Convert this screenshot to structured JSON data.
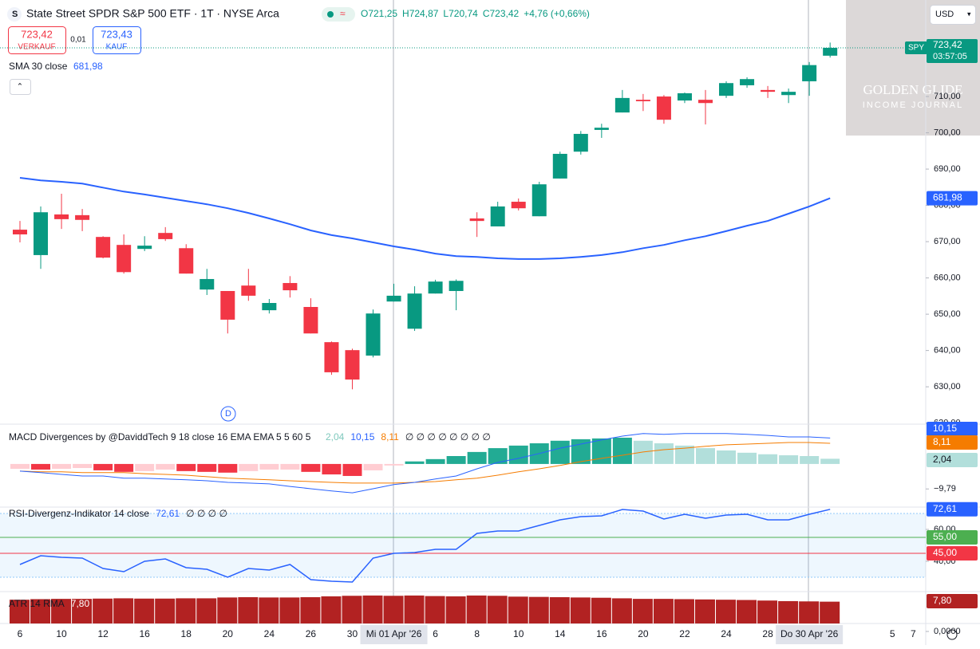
{
  "ui": {
    "bid": "723,42",
    "bid_label": "VERKAUF",
    "spread": "0,01",
    "ask": "723,43",
    "ask_label": "KAUF",
    "currency": "USD",
    "watermark": [
      "GOLDEN GLIDE",
      "INCOME JOURNAL"
    ],
    "event_marker": "D"
  },
  "chart_data": [
    {
      "type": "candlestick",
      "title": "State Street SPDR S&P 500 ETF · 1T · NYSE Arca",
      "symbol": "SPY",
      "countdown": "03:57:05",
      "legend_values": [
        "O721,25",
        "H724,87",
        "L720,74",
        "C723,42",
        "+4,76 (+0,66%)"
      ],
      "last_label": "723,42",
      "categories": [
        "6",
        null,
        "10",
        null,
        "12",
        null,
        "16",
        null,
        "18",
        null,
        "20",
        null,
        "24",
        null,
        "26",
        null,
        "30",
        null,
        "Mi 01 Apr '26",
        null,
        "6",
        null,
        "8",
        null,
        "10",
        null,
        "14",
        null,
        "16",
        null,
        "20",
        null,
        "22",
        null,
        "24",
        null,
        "28",
        null,
        "Do 30 Apr '26",
        null,
        null,
        null,
        "5",
        "7"
      ],
      "open": [
        673.3,
        666.3,
        677.5,
        677.3,
        671.3,
        669.1,
        668.0,
        672.4,
        668.2,
        656.8,
        656.4,
        657.9,
        651.1,
        658.6,
        652.0,
        642.3,
        640.1,
        638.6,
        653.5,
        646.0,
        655.7,
        656.4,
        676.4,
        674.2,
        681.0,
        677.0,
        687.4,
        694.8,
        700.8,
        705.6,
        709.1,
        710.0,
        708.9,
        709.1,
        710.2,
        713.1,
        711.8,
        710.4,
        714.2,
        721.25,
        null,
        null,
        null,
        null
      ],
      "high": [
        675.7,
        679.7,
        683.2,
        679.0,
        671.5,
        672.0,
        671.5,
        674.0,
        669.3,
        662.5,
        656.4,
        662.5,
        654.2,
        660.5,
        654.4,
        642.5,
        640.5,
        651.3,
        658.4,
        657.7,
        659.5,
        659.6,
        678.1,
        681.0,
        681.9,
        686.5,
        694.8,
        700.5,
        702.5,
        711.8,
        710.7,
        710.4,
        711.1,
        711.8,
        714.2,
        715.3,
        712.9,
        712.2,
        719.5,
        724.87,
        null,
        null,
        null,
        null
      ],
      "low": [
        669.8,
        662.5,
        673.5,
        672.9,
        665.4,
        661.2,
        667.4,
        670.2,
        661.2,
        655.3,
        644.7,
        653.7,
        650.2,
        654.6,
        644.7,
        633.3,
        629.3,
        638.1,
        653.5,
        645.4,
        655.7,
        651.1,
        671.3,
        674.2,
        678.6,
        677.0,
        687.4,
        694.0,
        698.6,
        705.6,
        706.0,
        702.5,
        708.2,
        702.3,
        709.6,
        712.4,
        709.6,
        708.2,
        710.2,
        720.74,
        null,
        null,
        null,
        null
      ],
      "close": [
        672.0,
        678.1,
        676.2,
        676.0,
        665.6,
        661.6,
        668.9,
        670.7,
        661.2,
        659.7,
        648.5,
        655.1,
        653.1,
        656.6,
        644.7,
        634.0,
        632.0,
        650.2,
        655.1,
        655.7,
        659.0,
        659.2,
        675.7,
        679.7,
        679.2,
        685.8,
        694.2,
        699.7,
        701.4,
        709.6,
        708.7,
        703.6,
        710.9,
        708.2,
        713.7,
        714.8,
        711.3,
        711.3,
        718.66,
        723.42,
        null,
        null,
        null,
        null
      ],
      "up_color": "#089981",
      "down_color": "#f23645",
      "ylim": [
        619.7,
        736.6
      ],
      "yticks": [
        {
          "value": 620,
          "label": "620,00"
        },
        {
          "value": 630,
          "label": "630,00"
        },
        {
          "value": 640,
          "label": "640,00"
        },
        {
          "value": 650,
          "label": "650,00"
        },
        {
          "value": 660,
          "label": "660,00"
        },
        {
          "value": 670,
          "label": "670,00"
        },
        {
          "value": 680,
          "label": "680,00"
        },
        {
          "value": 690,
          "label": "690,00"
        },
        {
          "value": 700,
          "label": "700,00"
        },
        {
          "value": 710,
          "label": "710,00"
        }
      ],
      "series": [
        {
          "name": "SMA 30 close",
          "color": "#2962ff",
          "last_value_label": "681,98",
          "values": [
            687.6,
            686.9,
            686.5,
            686.0,
            684.9,
            683.8,
            683.0,
            682.1,
            681.2,
            680.3,
            679.2,
            677.9,
            676.4,
            674.8,
            673.1,
            671.8,
            670.9,
            669.8,
            668.7,
            667.8,
            666.7,
            666.0,
            665.8,
            665.4,
            665.2,
            665.2,
            665.4,
            665.8,
            666.3,
            667.1,
            668.2,
            669.1,
            670.4,
            671.5,
            672.9,
            674.4,
            675.7,
            677.7,
            679.7,
            681.98,
            null,
            null,
            null,
            null
          ]
        }
      ]
    },
    {
      "type": "macd",
      "title": "MACD Divergences by @DaviddTech 9 18 close 16 EMA EMA 5 5 60 5",
      "flags": "∅ ∅ ∅ ∅ ∅ ∅ ∅ ∅",
      "ylim": [
        -16.9,
        15.6
      ],
      "yticks": [
        {
          "value": -9.79,
          "label": "−9,79"
        }
      ],
      "histogram": {
        "colors": [
          "#22ab94",
          "#b2dfdb",
          "#ffcdd2",
          "#f23645"
        ],
        "value_label": "2,04",
        "values": [
          -1.9,
          -2.2,
          -1.9,
          -1.6,
          -2.5,
          -3.1,
          -2.8,
          -2.2,
          -2.8,
          -3.1,
          -3.4,
          -2.8,
          -2.2,
          -2.2,
          -3.1,
          -4.1,
          -4.7,
          -2.5,
          -0.6,
          1.0,
          1.9,
          3.1,
          4.7,
          6.2,
          7.2,
          8.1,
          9.1,
          9.7,
          10.0,
          10.3,
          9.1,
          8.1,
          7.2,
          6.2,
          5.3,
          4.4,
          3.8,
          3.4,
          3.1,
          2.04,
          null,
          null,
          null,
          null
        ]
      },
      "macd": {
        "color": "#2962ff",
        "value_label": "10,15",
        "values": [
          -2.8,
          -3.4,
          -4.1,
          -4.7,
          -4.7,
          -5.6,
          -5.6,
          -5.9,
          -6.2,
          -6.6,
          -7.2,
          -7.5,
          -7.8,
          -8.8,
          -9.7,
          -10.6,
          -11.3,
          -9.7,
          -8.1,
          -7.2,
          -5.9,
          -4.7,
          -1.9,
          0.6,
          2.2,
          4.1,
          6.2,
          7.8,
          9.4,
          10.9,
          11.9,
          11.6,
          11.9,
          11.9,
          11.9,
          11.6,
          11.2,
          10.6,
          10.6,
          10.15,
          null,
          null,
          null,
          null
        ]
      },
      "signal": {
        "color": "#f57c00",
        "value_label": "8,11",
        "values": [
          -2.8,
          -3.1,
          -3.1,
          -3.4,
          -3.4,
          -3.4,
          -3.8,
          -4.1,
          -4.4,
          -5.0,
          -5.6,
          -5.9,
          -6.2,
          -6.6,
          -6.9,
          -7.2,
          -7.5,
          -7.5,
          -7.5,
          -7.2,
          -6.9,
          -6.2,
          -5.6,
          -4.4,
          -3.1,
          -1.9,
          -0.6,
          0.9,
          2.2,
          3.4,
          4.7,
          5.6,
          6.2,
          6.9,
          7.5,
          7.8,
          8.1,
          8.4,
          8.4,
          8.11,
          null,
          null,
          null,
          null
        ]
      }
    },
    {
      "type": "line",
      "title": "RSI-Divergenz-Indikator 14 close",
      "flags": "∅ ∅ ∅ ∅",
      "color": "#2962ff",
      "value_label": "72,61",
      "ylim": [
        21,
        74
      ],
      "yticks": [
        {
          "value": 40,
          "label": "40,00"
        },
        {
          "value": 60,
          "label": "60,00"
        }
      ],
      "band": [
        30,
        70
      ],
      "levels": [
        {
          "value": 55,
          "label": "55,00",
          "color": "#4caf50"
        },
        {
          "value": 45,
          "label": "45,00",
          "color": "#f23645"
        }
      ],
      "values": [
        38,
        43.5,
        42.5,
        42,
        35.5,
        33.5,
        40,
        41.5,
        36,
        35,
        30,
        35.5,
        34.5,
        38,
        28.5,
        27.5,
        27,
        42,
        45,
        45.5,
        47.5,
        47.5,
        57.5,
        59,
        59,
        62.5,
        66,
        68,
        68.5,
        72.5,
        71.5,
        66.5,
        69.5,
        67,
        69,
        69.5,
        66,
        66,
        69.5,
        72.61,
        null,
        null,
        null,
        null
      ]
    },
    {
      "type": "bar",
      "title": "ATR 14 RMA",
      "color": "#b22222",
      "value_label": "7,80",
      "ylim": [
        0,
        11.4
      ],
      "yticks": [
        {
          "value": 0,
          "label": "0,0000"
        }
      ],
      "values": [
        8.5,
        8.7,
        8.8,
        8.8,
        8.9,
        9.0,
        8.9,
        8.9,
        9.0,
        9.0,
        9.3,
        9.4,
        9.3,
        9.3,
        9.4,
        9.7,
        9.9,
        10.0,
        9.9,
        10.0,
        9.8,
        9.7,
        10.0,
        9.9,
        9.6,
        9.5,
        9.4,
        9.3,
        9.2,
        9.0,
        8.8,
        8.8,
        8.7,
        8.6,
        8.5,
        8.4,
        8.2,
        8.0,
        7.9,
        7.8,
        null,
        null,
        null,
        null
      ]
    }
  ]
}
